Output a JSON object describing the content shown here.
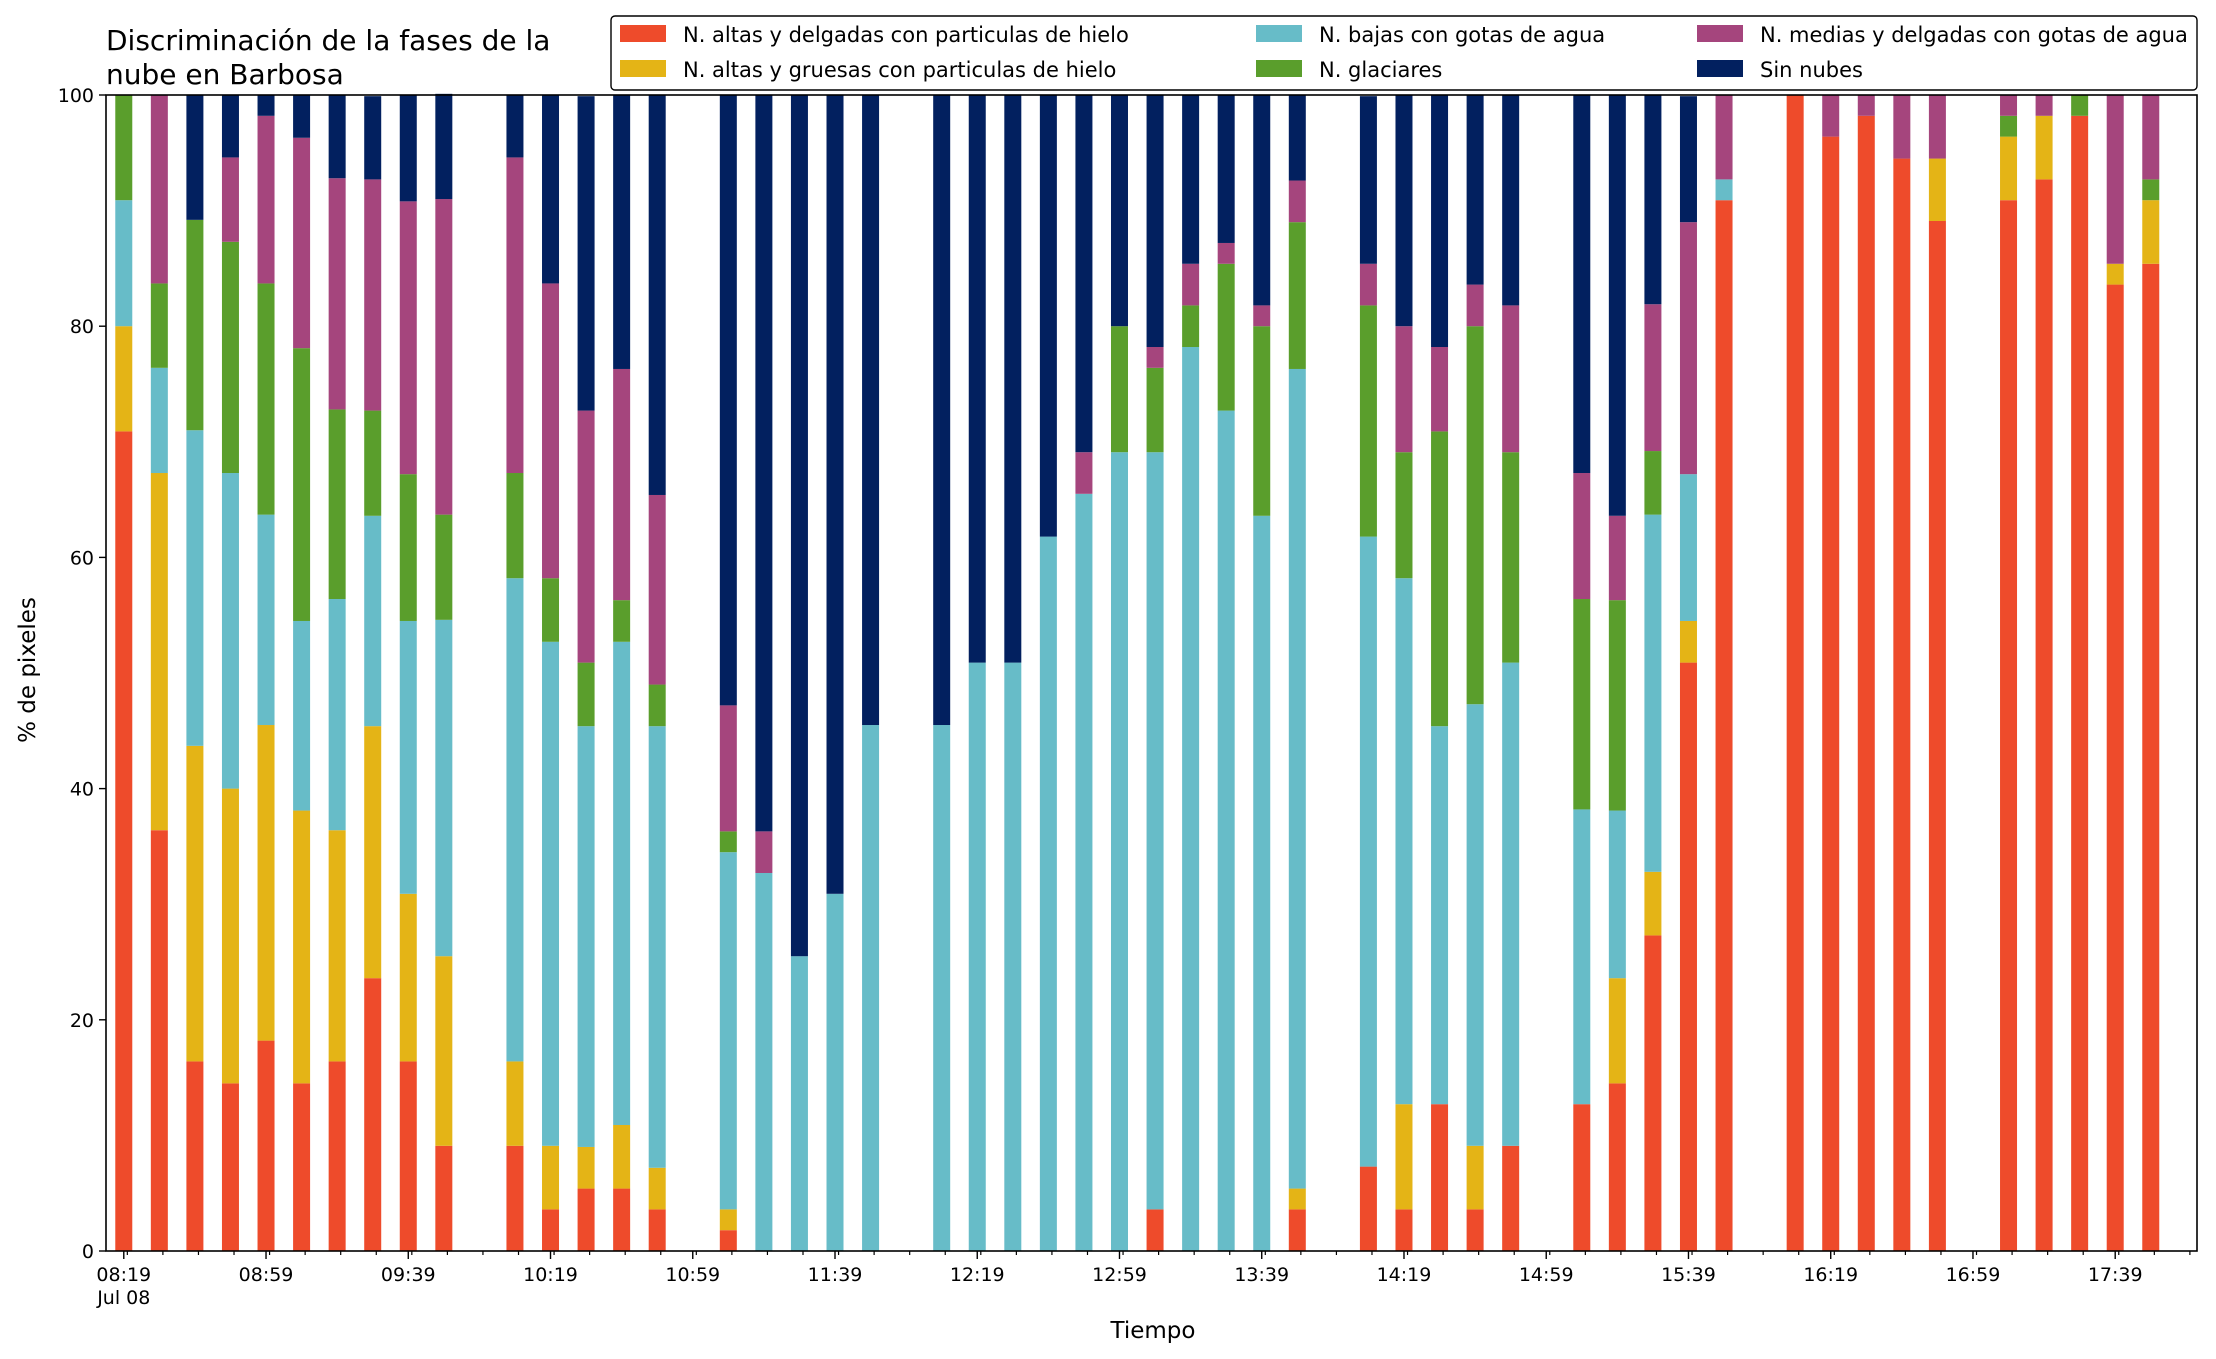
{
  "chart_data": {
    "type": "bar",
    "stacked": true,
    "title_lines": [
      "Discriminación de la fases de la",
      "nube en Barbosa"
    ],
    "xlabel": "Tiempo",
    "ylabel": "% de pixeles",
    "ylim": [
      0,
      100
    ],
    "yticks": [
      0,
      20,
      40,
      60,
      80,
      100
    ],
    "xlim": [
      "08:14",
      "18:02"
    ],
    "x_tick_labels": [
      "08:19",
      "08:59",
      "09:39",
      "10:19",
      "10:59",
      "11:39",
      "12:19",
      "12:59",
      "13:39",
      "14:19",
      "14:59",
      "15:39",
      "16:19",
      "16:59",
      "17:39"
    ],
    "x_date_label": "Jul 08",
    "minor_tick_interval_minutes": 10,
    "legend_position": "top-right",
    "legend_columns": 3,
    "colors": {
      "altas_delgadas": "#ee4b2b",
      "altas_gruesas": "#e4b416",
      "bajas": "#67bcc8",
      "glaciares": "#5a9e2c",
      "medias": "#a5457d",
      "sin_nubes": "#02205f"
    },
    "series_order": [
      "altas_delgadas",
      "altas_gruesas",
      "bajas",
      "glaciares",
      "medias",
      "sin_nubes"
    ],
    "legend": [
      {
        "key": "altas_delgadas",
        "label": "N. altas y delgadas con particulas de hielo"
      },
      {
        "key": "bajas",
        "label": "N. bajas con gotas de agua"
      },
      {
        "key": "medias",
        "label": "N. medias y delgadas con gotas de agua"
      },
      {
        "key": "altas_gruesas",
        "label": "N. altas y gruesas con particulas de hielo"
      },
      {
        "key": "glaciares",
        "label": "N. glaciares"
      },
      {
        "key": "sin_nubes",
        "label": "Sin nubes"
      }
    ],
    "x": [
      "08:19",
      "08:29",
      "08:39",
      "08:49",
      "08:59",
      "09:09",
      "09:19",
      "09:29",
      "09:39",
      "09:49",
      "10:09",
      "10:19",
      "10:29",
      "10:39",
      "10:49",
      "11:09",
      "11:19",
      "11:29",
      "11:39",
      "11:49",
      "12:09",
      "12:19",
      "12:29",
      "12:39",
      "12:49",
      "12:59",
      "13:09",
      "13:19",
      "13:29",
      "13:39",
      "13:49",
      "14:09",
      "14:19",
      "14:29",
      "14:39",
      "14:49",
      "15:09",
      "15:19",
      "15:29",
      "15:39",
      "15:49",
      "16:09",
      "16:19",
      "16:29",
      "16:39",
      "16:49",
      "17:09",
      "17:19",
      "17:29",
      "17:39",
      "17:49"
    ],
    "series": [
      {
        "key": "altas_delgadas",
        "values": [
          70.9,
          36.4,
          16.4,
          14.5,
          18.2,
          14.5,
          16.4,
          23.6,
          16.4,
          9.1,
          9.1,
          3.6,
          5.4,
          5.4,
          3.6,
          1.8,
          0,
          0,
          0,
          0,
          0,
          0,
          0,
          0,
          0,
          0,
          3.6,
          0,
          0,
          0,
          3.6,
          7.3,
          3.6,
          12.7,
          3.6,
          9.1,
          12.7,
          14.5,
          27.3,
          50.9,
          90.9,
          100,
          96.4,
          98.2,
          94.5,
          89.1,
          90.9,
          92.7,
          98.2,
          83.6,
          85.4
        ]
      },
      {
        "key": "altas_gruesas",
        "values": [
          9.1,
          30.9,
          27.3,
          25.5,
          27.3,
          23.6,
          20,
          21.8,
          14.5,
          16.4,
          7.3,
          5.5,
          3.6,
          5.5,
          3.6,
          1.8,
          0,
          0,
          0,
          0,
          0,
          0,
          0,
          0,
          0,
          0,
          0,
          0,
          0,
          0,
          1.8,
          0,
          9.1,
          0,
          5.5,
          0,
          0,
          9.1,
          5.5,
          3.6,
          0,
          0,
          0,
          0,
          0,
          5.4,
          5.5,
          5.5,
          0,
          1.8,
          5.5
        ]
      },
      {
        "key": "bajas",
        "values": [
          10.9,
          9.1,
          27.3,
          27.3,
          18.2,
          16.4,
          20,
          18.2,
          23.6,
          29.1,
          41.8,
          43.6,
          36.4,
          41.8,
          38.2,
          30.9,
          32.7,
          25.5,
          30.9,
          45.5,
          45.5,
          50.9,
          50.9,
          61.8,
          65.5,
          69.1,
          65.5,
          78.2,
          72.7,
          63.6,
          70.9,
          54.5,
          45.5,
          32.7,
          38.2,
          41.8,
          25.5,
          14.5,
          30.9,
          12.7,
          1.8,
          0,
          0,
          0,
          0,
          0,
          0,
          0,
          0,
          0,
          0
        ]
      },
      {
        "key": "glaciares",
        "values": [
          9.1,
          7.3,
          18.2,
          20,
          20,
          23.6,
          16.4,
          9.1,
          12.7,
          9.1,
          9.1,
          5.5,
          5.5,
          3.6,
          3.6,
          1.8,
          0,
          0,
          0,
          0,
          0,
          0,
          0,
          0,
          0,
          10.9,
          7.3,
          3.6,
          12.7,
          16.4,
          12.7,
          20,
          10.9,
          25.5,
          32.7,
          18.2,
          18.2,
          18.2,
          5.5,
          0,
          0,
          0,
          0,
          0,
          0,
          0,
          1.8,
          0,
          1.8,
          0,
          1.8
        ]
      },
      {
        "key": "medias",
        "values": [
          0,
          16.3,
          0,
          7.3,
          14.5,
          18.2,
          20,
          20,
          23.6,
          27.3,
          27.3,
          25.5,
          21.8,
          20,
          16.4,
          10.9,
          3.6,
          0,
          0,
          0,
          0,
          0,
          0,
          0,
          3.6,
          0,
          1.8,
          3.6,
          1.8,
          1.8,
          3.6,
          3.6,
          10.9,
          7.3,
          3.6,
          12.7,
          10.9,
          7.3,
          12.7,
          21.8,
          7.3,
          0,
          3.6,
          1.8,
          5.5,
          5.5,
          1.8,
          1.8,
          0,
          14.6,
          7.3
        ]
      },
      {
        "key": "sin_nubes",
        "values": [
          0,
          0,
          10.8,
          5.4,
          1.8,
          3.7,
          7.2,
          7.2,
          9.2,
          9.1,
          5.4,
          16.3,
          27.2,
          23.7,
          34.6,
          52.8,
          63.7,
          74.5,
          69.1,
          54.5,
          54.5,
          49.1,
          49.1,
          38.2,
          30.9,
          20,
          21.8,
          14.6,
          12.8,
          18.2,
          7.4,
          14.5,
          20,
          21.8,
          16.4,
          18.2,
          32.7,
          36.4,
          18.1,
          10.9,
          0,
          0,
          0,
          0,
          0,
          0,
          0,
          0,
          0,
          0,
          0
        ]
      }
    ]
  }
}
